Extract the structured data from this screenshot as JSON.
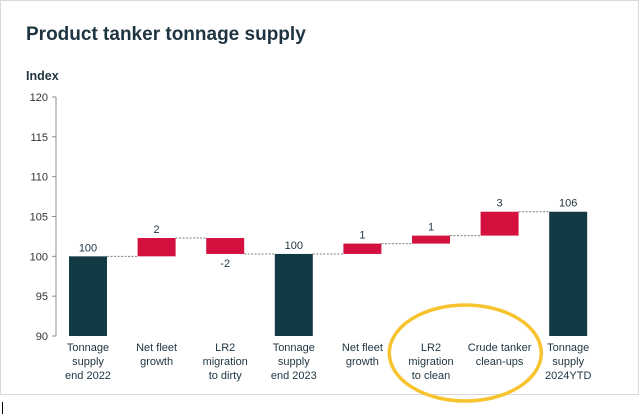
{
  "chart_data": {
    "type": "bar",
    "subtype": "waterfall",
    "title": "Product tanker tonnage supply",
    "ylabel": "Index",
    "xlabel": "",
    "ylim": [
      90,
      120
    ],
    "yticks": [
      90,
      95,
      100,
      105,
      110,
      115,
      120
    ],
    "grid": false,
    "bars": [
      {
        "category": "Tonnage supply end 2022",
        "lines": [
          "Tonnage",
          "supply",
          "end 2022"
        ],
        "kind": "total",
        "start": 90,
        "end": 100,
        "label": "100"
      },
      {
        "category": "Net fleet growth",
        "lines": [
          "Net fleet",
          "growth"
        ],
        "kind": "delta",
        "start": 100,
        "end": 102.3,
        "label": "2"
      },
      {
        "category": "LR2 migration to dirty",
        "lines": [
          "LR2",
          "migration",
          "to dirty"
        ],
        "kind": "delta",
        "start": 102.3,
        "end": 100.3,
        "label": "-2"
      },
      {
        "category": "Tonnage supply end 2023",
        "lines": [
          "Tonnage",
          "supply",
          "end 2023"
        ],
        "kind": "total",
        "start": 90,
        "end": 100.3,
        "label": "100"
      },
      {
        "category": "Net fleet growth",
        "lines": [
          "Net fleet",
          "growth"
        ],
        "kind": "delta",
        "start": 100.3,
        "end": 101.6,
        "label": "1"
      },
      {
        "category": "LR2 migration to clean",
        "lines": [
          "LR2",
          "migration",
          "to clean"
        ],
        "kind": "delta",
        "start": 101.6,
        "end": 102.6,
        "label": "1"
      },
      {
        "category": "Crude tanker clean-ups",
        "lines": [
          "Crude tanker",
          "clean-ups"
        ],
        "kind": "delta",
        "start": 102.6,
        "end": 105.6,
        "label": "3"
      },
      {
        "category": "Tonnage supply 2024YTD",
        "lines": [
          "Tonnage",
          "supply",
          "2024YTD"
        ],
        "kind": "total",
        "start": 90,
        "end": 105.6,
        "label": "106"
      }
    ],
    "annotation": {
      "type": "ellipse-highlight",
      "target_categories": [
        "LR2 migration to clean",
        "Crude tanker clean-ups"
      ],
      "color": "#f7c32e"
    }
  },
  "colors": {
    "total": "#123a45",
    "delta": "#d4103f",
    "connector": "#7f7f7f",
    "axis": "#8c8c8c",
    "highlight": "#f7c32e"
  }
}
